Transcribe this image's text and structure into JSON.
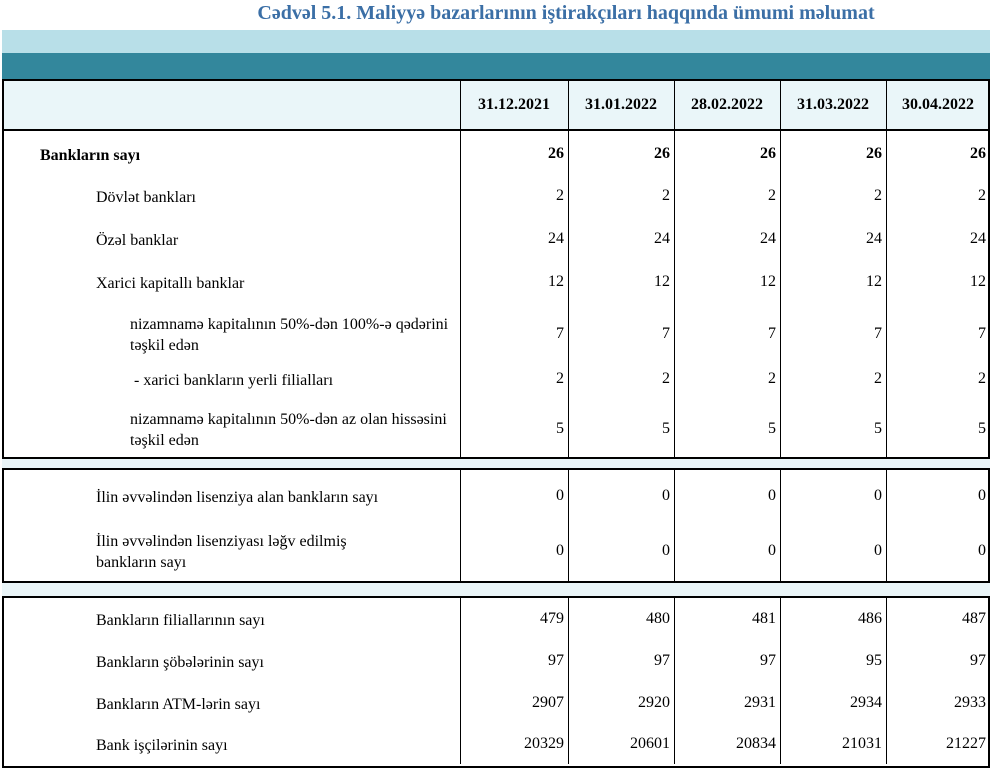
{
  "title": "Cədvəl 5.1. Maliyyə bazarlarının iştirakçıları haqqında ümumi məlumat",
  "columns": [
    "31.12.2021",
    "31.01.2022",
    "28.02.2022",
    "31.03.2022",
    "30.04.2022"
  ],
  "rows": [
    {
      "label": "Bankların sayı",
      "values": [
        "26",
        "26",
        "26",
        "26",
        "26"
      ],
      "bold": true
    },
    {
      "label": "Dövlət bankları",
      "values": [
        "2",
        "2",
        "2",
        "2",
        "2"
      ]
    },
    {
      "label": "Özəl banklar",
      "values": [
        "24",
        "24",
        "24",
        "24",
        "24"
      ]
    },
    {
      "label": "Xarici kapitallı banklar",
      "values": [
        "12",
        "12",
        "12",
        "12",
        "12"
      ]
    },
    {
      "label": "nizamnamə kapitalının 50%-dən 100%-ə qədərini təşkil edən",
      "values": [
        "7",
        "7",
        "7",
        "7",
        "7"
      ]
    },
    {
      "label": "-  xarici bankların yerli filialları",
      "values": [
        "2",
        "2",
        "2",
        "2",
        "2"
      ]
    },
    {
      "label": "nizamnamə kapitalının 50%-dən az olan hissəsini  təşkil edən",
      "values": [
        "5",
        "5",
        "5",
        "5",
        "5"
      ]
    },
    {
      "label": "İlin əvvəlindən lisenziya alan bankların sayı",
      "values": [
        "0",
        "0",
        "0",
        "0",
        "0"
      ]
    },
    {
      "label": "İlin əvvəlindən lisenziyası ləğv edilmiş bankların sayı",
      "values": [
        "0",
        "0",
        "0",
        "0",
        "0"
      ]
    },
    {
      "label": "Bankların filiallarının sayı",
      "values": [
        "479",
        "480",
        "481",
        "486",
        "487"
      ]
    },
    {
      "label": "Bankların şöbələrinin sayı",
      "values": [
        "97",
        "97",
        "97",
        "95",
        "97"
      ]
    },
    {
      "label": "Bankların ATM-lərin sayı",
      "values": [
        "2907",
        "2920",
        "2931",
        "2934",
        "2933"
      ]
    },
    {
      "label": "Bank işçilərinin sayı",
      "values": [
        "20329",
        "20601",
        "20834",
        "21031",
        "21227"
      ]
    }
  ],
  "colors": {
    "title": "#3b6fa6",
    "band_light": "#b8dfe8",
    "band_dark": "#33879c",
    "header_bg": "#eaf6f9"
  }
}
